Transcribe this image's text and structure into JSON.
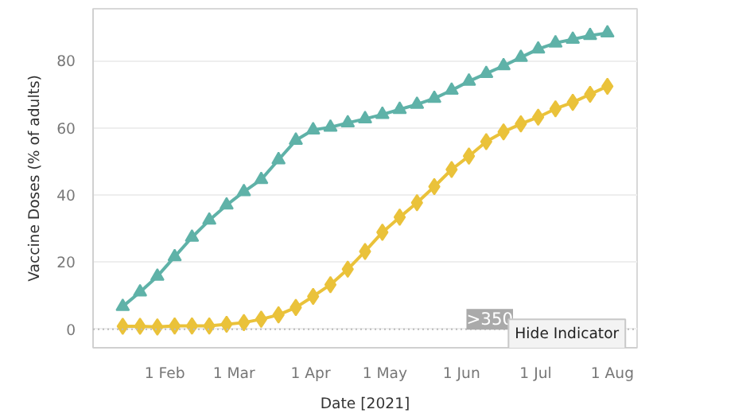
{
  "chart_data": {
    "type": "line",
    "xlabel": "Date [2021]",
    "ylabel": "Vaccine Doses (% of adults)",
    "x": [
      "2021-01-15",
      "2021-01-22",
      "2021-01-29",
      "2021-02-05",
      "2021-02-12",
      "2021-02-19",
      "2021-02-26",
      "2021-03-05",
      "2021-03-12",
      "2021-03-19",
      "2021-03-26",
      "2021-04-02",
      "2021-04-09",
      "2021-04-16",
      "2021-04-23",
      "2021-04-30",
      "2021-05-07",
      "2021-05-14",
      "2021-05-21",
      "2021-05-28",
      "2021-06-04",
      "2021-06-11",
      "2021-06-18",
      "2021-06-25",
      "2021-07-02",
      "2021-07-09",
      "2021-07-16",
      "2021-07-23",
      "2021-07-30"
    ],
    "series": [
      {
        "color": "#5fb2a8",
        "marker": "triangle",
        "values": [
          6.8,
          11.1,
          15.8,
          21.6,
          27.4,
          32.5,
          37,
          41,
          44.6,
          50.5,
          56.3,
          59.4,
          60.2,
          61.5,
          62.7,
          64,
          65.5,
          67,
          68.8,
          71.2,
          73.9,
          76.2,
          78.5,
          81,
          83.5,
          85.3,
          86.4,
          87.5,
          88.3
        ]
      },
      {
        "color": "#eac23a",
        "marker": "diamond",
        "values": [
          0.9,
          0.9,
          0.7,
          1,
          1,
          1,
          1.5,
          2,
          3,
          4.3,
          6.5,
          9.8,
          13.3,
          17.9,
          23.2,
          28.9,
          33.4,
          37.7,
          42.5,
          47.6,
          51.6,
          55.9,
          58.8,
          61.2,
          63.2,
          65.7,
          67.6,
          70,
          72.4
        ]
      }
    ],
    "xlim": [
      "2021-01-03",
      "2021-08-11"
    ],
    "xticks": [
      {
        "value": "2021-02-01",
        "label": "1 Feb"
      },
      {
        "value": "2021-03-01",
        "label": "1 Mar"
      },
      {
        "value": "2021-04-01",
        "label": "1 Apr"
      },
      {
        "value": "2021-05-01",
        "label": "1 May"
      },
      {
        "value": "2021-06-01",
        "label": "1 Jun"
      },
      {
        "value": "2021-07-01",
        "label": "1 Jul"
      },
      {
        "value": "2021-08-01",
        "label": "1 Aug"
      }
    ],
    "ylim": [
      -5.5,
      95.5
    ],
    "yticks": [
      0,
      20,
      40,
      60,
      80
    ],
    "grid": "y",
    "line_style": "solid",
    "ref_lines": [
      {
        "axis": "y",
        "value": 0,
        "color": "#bbbbbb",
        "line_style": "dotted"
      }
    ],
    "annotations": [
      ">350",
      "Hide Indicator"
    ]
  }
}
